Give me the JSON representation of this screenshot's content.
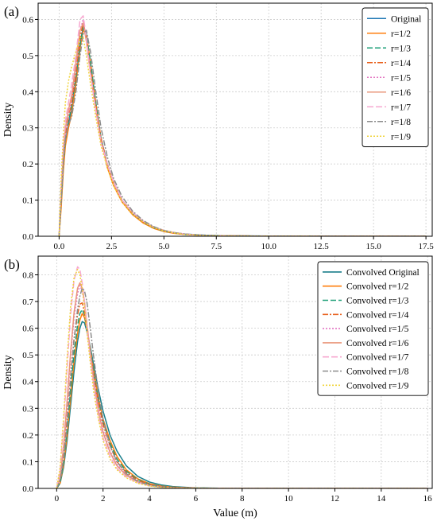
{
  "chart_data": [
    {
      "type": "line",
      "panel_label": "(a)",
      "xlabel": "",
      "ylabel": "Density",
      "xlim": [
        -1.0,
        17.8
      ],
      "ylim": [
        0.0,
        0.645
      ],
      "xticks": [
        "0.0",
        "2.5",
        "5.0",
        "7.5",
        "10.0",
        "12.5",
        "15.0",
        "17.5"
      ],
      "xtick_values": [
        0,
        2.5,
        5,
        7.5,
        10,
        12.5,
        15,
        17.5
      ],
      "yticks": [
        "0.0",
        "0.1",
        "0.2",
        "0.3",
        "0.4",
        "0.5",
        "0.6"
      ],
      "ytick_values": [
        0,
        0.1,
        0.2,
        0.3,
        0.4,
        0.5,
        0.6
      ],
      "grid": true,
      "legend_position": "top-right",
      "x": [
        0.0,
        0.1,
        0.2,
        0.3,
        0.45,
        0.6,
        0.8,
        1.0,
        1.15,
        1.3,
        1.5,
        1.75,
        2.0,
        2.3,
        2.6,
        3.0,
        3.5,
        4.0,
        4.5,
        5.0,
        5.5,
        6.0,
        7.0,
        8.0,
        10.0,
        12.5,
        15.0,
        17.5
      ],
      "series": [
        {
          "name": "Original",
          "color": "#1f77b4",
          "dash": "",
          "values": [
            0.0,
            0.09,
            0.19,
            0.26,
            0.31,
            0.35,
            0.43,
            0.53,
            0.58,
            0.55,
            0.47,
            0.36,
            0.27,
            0.2,
            0.15,
            0.1,
            0.065,
            0.04,
            0.025,
            0.015,
            0.01,
            0.006,
            0.003,
            0.0015,
            0.0005,
            0.0001,
            0.0,
            0.0
          ]
        },
        {
          "name": "r=1/2",
          "color": "#ff7f0e",
          "dash": "",
          "values": [
            0.0,
            0.08,
            0.18,
            0.25,
            0.3,
            0.34,
            0.42,
            0.52,
            0.57,
            0.56,
            0.48,
            0.37,
            0.27,
            0.19,
            0.14,
            0.095,
            0.06,
            0.037,
            0.022,
            0.013,
            0.008,
            0.005,
            0.002,
            0.001,
            0.0004,
            0.0001,
            0.0,
            0.0
          ]
        },
        {
          "name": "r=1/3",
          "color": "#1a9e77",
          "dash": "7,3",
          "values": [
            0.0,
            0.1,
            0.2,
            0.27,
            0.32,
            0.36,
            0.44,
            0.53,
            0.58,
            0.56,
            0.48,
            0.37,
            0.27,
            0.2,
            0.15,
            0.1,
            0.064,
            0.04,
            0.024,
            0.014,
            0.009,
            0.005,
            0.002,
            0.001,
            0.0004,
            0.0001,
            0.0,
            0.0
          ]
        },
        {
          "name": "r=1/4",
          "color": "#e8601c",
          "dash": "7,2,2,2",
          "values": [
            0.0,
            0.11,
            0.21,
            0.28,
            0.33,
            0.37,
            0.45,
            0.55,
            0.59,
            0.55,
            0.46,
            0.36,
            0.27,
            0.2,
            0.15,
            0.1,
            0.066,
            0.041,
            0.025,
            0.015,
            0.009,
            0.005,
            0.002,
            0.001,
            0.0004,
            0.0001,
            0.0,
            0.0
          ]
        },
        {
          "name": "r=1/5",
          "color": "#e377c2",
          "dash": "2,2",
          "values": [
            0.0,
            0.12,
            0.22,
            0.29,
            0.34,
            0.38,
            0.47,
            0.57,
            0.6,
            0.54,
            0.45,
            0.35,
            0.26,
            0.2,
            0.15,
            0.1,
            0.066,
            0.042,
            0.026,
            0.016,
            0.01,
            0.006,
            0.002,
            0.001,
            0.0004,
            0.0001,
            0.0,
            0.0
          ]
        },
        {
          "name": "r=1/6",
          "color": "#e9967a",
          "dash": "",
          "values": [
            0.0,
            0.13,
            0.23,
            0.3,
            0.35,
            0.39,
            0.48,
            0.57,
            0.59,
            0.54,
            0.45,
            0.35,
            0.26,
            0.2,
            0.15,
            0.1,
            0.066,
            0.042,
            0.026,
            0.016,
            0.01,
            0.006,
            0.002,
            0.001,
            0.0004,
            0.0001,
            0.0,
            0.0
          ]
        },
        {
          "name": "r=1/7",
          "color": "#f7a8d0",
          "dash": "8,3",
          "values": [
            0.0,
            0.14,
            0.25,
            0.32,
            0.37,
            0.42,
            0.5,
            0.6,
            0.61,
            0.55,
            0.45,
            0.35,
            0.26,
            0.2,
            0.15,
            0.1,
            0.066,
            0.042,
            0.026,
            0.016,
            0.01,
            0.006,
            0.002,
            0.001,
            0.0004,
            0.0001,
            0.0,
            0.0
          ]
        },
        {
          "name": "r=1/8",
          "color": "#8c8c8c",
          "dash": "7,2,2,2",
          "values": [
            0.0,
            0.1,
            0.2,
            0.27,
            0.31,
            0.33,
            0.4,
            0.5,
            0.56,
            0.57,
            0.51,
            0.4,
            0.3,
            0.22,
            0.16,
            0.11,
            0.07,
            0.044,
            0.027,
            0.016,
            0.01,
            0.006,
            0.002,
            0.001,
            0.0004,
            0.0001,
            0.0,
            0.0
          ]
        },
        {
          "name": "r=1/9",
          "color": "#f0d43a",
          "dash": "2,2",
          "values": [
            0.0,
            0.16,
            0.28,
            0.37,
            0.43,
            0.47,
            0.51,
            0.55,
            0.55,
            0.5,
            0.42,
            0.33,
            0.25,
            0.19,
            0.14,
            0.095,
            0.062,
            0.04,
            0.024,
            0.015,
            0.009,
            0.005,
            0.002,
            0.001,
            0.0004,
            0.0001,
            0.0,
            0.0
          ]
        }
      ]
    },
    {
      "type": "line",
      "panel_label": "(b)",
      "xlabel": "Value (m)",
      "ylabel": "Density",
      "xlim": [
        -0.8,
        16.2
      ],
      "ylim": [
        0.0,
        0.87
      ],
      "xticks": [
        "0",
        "2",
        "4",
        "6",
        "8",
        "10",
        "12",
        "14",
        "16"
      ],
      "xtick_values": [
        0,
        2,
        4,
        6,
        8,
        10,
        12,
        14,
        16
      ],
      "yticks": [
        "0.0",
        "0.1",
        "0.2",
        "0.3",
        "0.4",
        "0.5",
        "0.6",
        "0.7",
        "0.8"
      ],
      "ytick_values": [
        0,
        0.1,
        0.2,
        0.3,
        0.4,
        0.5,
        0.6,
        0.7,
        0.8
      ],
      "grid": true,
      "legend_position": "top-right",
      "x": [
        0.0,
        0.15,
        0.3,
        0.45,
        0.6,
        0.75,
        0.9,
        1.0,
        1.1,
        1.2,
        1.3,
        1.45,
        1.6,
        1.8,
        2.0,
        2.3,
        2.6,
        3.0,
        3.5,
        4.0,
        4.5,
        5.0,
        6.0,
        7.0,
        8.0,
        10.0,
        12.0,
        14.0,
        16.0
      ],
      "series": [
        {
          "name": "Convolved Original",
          "color": "#1b7f8c",
          "dash": "",
          "values": [
            0.0,
            0.02,
            0.08,
            0.18,
            0.31,
            0.44,
            0.55,
            0.6,
            0.625,
            0.62,
            0.59,
            0.53,
            0.46,
            0.37,
            0.29,
            0.2,
            0.14,
            0.085,
            0.045,
            0.024,
            0.013,
            0.007,
            0.002,
            0.0008,
            0.0003,
            0.0001,
            0.0,
            0.0,
            0.0
          ]
        },
        {
          "name": "Convolved r=1/2",
          "color": "#ff7f0e",
          "dash": "",
          "values": [
            0.0,
            0.02,
            0.09,
            0.2,
            0.34,
            0.48,
            0.58,
            0.63,
            0.655,
            0.64,
            0.6,
            0.52,
            0.44,
            0.34,
            0.26,
            0.18,
            0.12,
            0.07,
            0.036,
            0.018,
            0.009,
            0.005,
            0.0015,
            0.0005,
            0.0002,
            0.0,
            0.0,
            0.0,
            0.0
          ]
        },
        {
          "name": "Convolved r=1/3",
          "color": "#1a9e77",
          "dash": "7,3",
          "values": [
            0.0,
            0.02,
            0.1,
            0.22,
            0.37,
            0.51,
            0.61,
            0.655,
            0.67,
            0.65,
            0.6,
            0.52,
            0.43,
            0.33,
            0.25,
            0.17,
            0.11,
            0.065,
            0.033,
            0.016,
            0.008,
            0.004,
            0.0012,
            0.0004,
            0.0001,
            0.0,
            0.0,
            0.0,
            0.0
          ]
        },
        {
          "name": "Convolved r=1/4",
          "color": "#e8601c",
          "dash": "7,2,2,2",
          "values": [
            0.0,
            0.03,
            0.12,
            0.26,
            0.42,
            0.56,
            0.65,
            0.69,
            0.695,
            0.66,
            0.6,
            0.51,
            0.42,
            0.32,
            0.24,
            0.16,
            0.1,
            0.06,
            0.03,
            0.015,
            0.007,
            0.0035,
            0.001,
            0.0003,
            0.0001,
            0.0,
            0.0,
            0.0,
            0.0
          ]
        },
        {
          "name": "Convolved r=1/5",
          "color": "#e377c2",
          "dash": "2,2",
          "values": [
            0.0,
            0.04,
            0.15,
            0.31,
            0.49,
            0.64,
            0.73,
            0.76,
            0.74,
            0.69,
            0.62,
            0.51,
            0.41,
            0.3,
            0.22,
            0.14,
            0.09,
            0.052,
            0.026,
            0.012,
            0.006,
            0.003,
            0.0008,
            0.0002,
            0.0001,
            0.0,
            0.0,
            0.0,
            0.0
          ]
        },
        {
          "name": "Convolved r=1/6",
          "color": "#e9967a",
          "dash": "",
          "values": [
            0.0,
            0.04,
            0.16,
            0.33,
            0.51,
            0.66,
            0.75,
            0.77,
            0.75,
            0.7,
            0.62,
            0.51,
            0.4,
            0.29,
            0.21,
            0.135,
            0.085,
            0.049,
            0.024,
            0.011,
            0.005,
            0.0025,
            0.0007,
            0.0002,
            0.0001,
            0.0,
            0.0,
            0.0,
            0.0
          ]
        },
        {
          "name": "Convolved r=1/7",
          "color": "#f7a8d0",
          "dash": "8,3",
          "values": [
            0.0,
            0.07,
            0.24,
            0.45,
            0.65,
            0.78,
            0.83,
            0.82,
            0.77,
            0.7,
            0.61,
            0.49,
            0.38,
            0.27,
            0.19,
            0.12,
            0.075,
            0.043,
            0.021,
            0.01,
            0.0045,
            0.002,
            0.0006,
            0.0002,
            0.0,
            0.0,
            0.0,
            0.0,
            0.0
          ]
        },
        {
          "name": "Convolved r=1/8",
          "color": "#8c8c8c",
          "dash": "7,2,2,2",
          "values": [
            0.0,
            0.03,
            0.11,
            0.24,
            0.41,
            0.56,
            0.67,
            0.72,
            0.75,
            0.74,
            0.7,
            0.6,
            0.49,
            0.36,
            0.26,
            0.16,
            0.1,
            0.055,
            0.026,
            0.012,
            0.0055,
            0.0025,
            0.0007,
            0.0002,
            0.0001,
            0.0,
            0.0,
            0.0,
            0.0
          ]
        },
        {
          "name": "Convolved r=1/9",
          "color": "#f0d43a",
          "dash": "2,2",
          "values": [
            0.0,
            0.08,
            0.27,
            0.49,
            0.68,
            0.79,
            0.82,
            0.8,
            0.75,
            0.68,
            0.59,
            0.47,
            0.36,
            0.26,
            0.18,
            0.11,
            0.07,
            0.04,
            0.019,
            0.009,
            0.004,
            0.0018,
            0.0005,
            0.0001,
            0.0,
            0.0,
            0.0,
            0.0,
            0.0
          ]
        }
      ]
    }
  ]
}
